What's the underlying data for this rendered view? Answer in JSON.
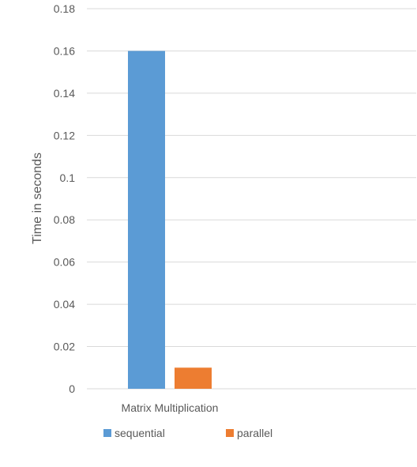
{
  "chart_data": {
    "type": "bar",
    "categories": [
      "Matrix Multiplication"
    ],
    "series": [
      {
        "name": "sequential",
        "values": [
          0.16
        ],
        "color": "#5b9bd5"
      },
      {
        "name": "parallel",
        "values": [
          0.01
        ],
        "color": "#ed7d31"
      }
    ],
    "title": "",
    "xlabel": "",
    "ylabel": "Time in seconds",
    "ylim": [
      0,
      0.18
    ],
    "yticks": [
      "0",
      "0.02",
      "0.04",
      "0.06",
      "0.08",
      "0.1",
      "0.12",
      "0.14",
      "0.16",
      "0.18"
    ],
    "grid": true,
    "legend_position": "bottom-left"
  },
  "colors": {
    "gridline": "#d9d9d9",
    "axis_text": "#595959"
  }
}
